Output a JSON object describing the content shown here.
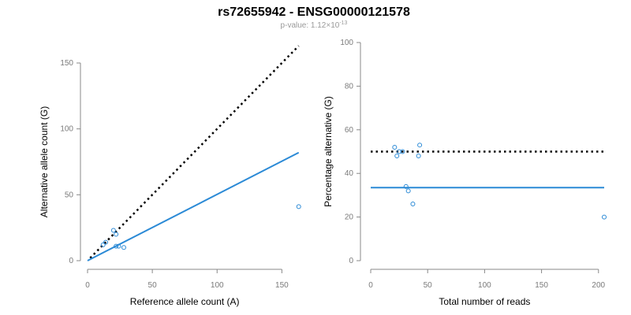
{
  "header": {
    "title": "rs72655942 - ENSG00000121578",
    "subtitle_prefix": "p-value: 1.12×10",
    "subtitle_exponent": "-13"
  },
  "colors": {
    "points": "#2b8ad6",
    "fit_line": "#2b8ad6",
    "reference_line": "#000000"
  },
  "chart_data": [
    {
      "type": "scatter",
      "title": "",
      "xlabel": "Reference allele count (A)",
      "ylabel": "Alternative allele count (G)",
      "xlim": [
        0,
        165
      ],
      "ylim": [
        0,
        150
      ],
      "xticks": [
        0,
        50,
        100,
        150
      ],
      "yticks": [
        0,
        50,
        100,
        150
      ],
      "grid": false,
      "points": [
        {
          "x": 12,
          "y": 12
        },
        {
          "x": 14,
          "y": 14
        },
        {
          "x": 20,
          "y": 23
        },
        {
          "x": 22,
          "y": 20
        },
        {
          "x": 22,
          "y": 11
        },
        {
          "x": 24,
          "y": 11
        },
        {
          "x": 28,
          "y": 10
        },
        {
          "x": 163,
          "y": 41
        }
      ],
      "reference_line": {
        "style": "dotted",
        "from": [
          2,
          2
        ],
        "to": [
          163,
          163
        ]
      },
      "fit_line": {
        "style": "solid",
        "from": [
          0,
          0
        ],
        "to": [
          163,
          82
        ]
      }
    },
    {
      "type": "scatter",
      "title": "",
      "xlabel": "Total number of reads",
      "ylabel": "Percentage alternative (G)",
      "xlim": [
        0,
        205
      ],
      "ylim": [
        0,
        100
      ],
      "xticks": [
        0,
        50,
        100,
        150,
        200
      ],
      "yticks": [
        0,
        20,
        40,
        60,
        80,
        100
      ],
      "grid": false,
      "points": [
        {
          "x": 21,
          "y": 52
        },
        {
          "x": 23,
          "y": 48
        },
        {
          "x": 25,
          "y": 50
        },
        {
          "x": 28,
          "y": 50
        },
        {
          "x": 31,
          "y": 34
        },
        {
          "x": 33,
          "y": 32
        },
        {
          "x": 37,
          "y": 26
        },
        {
          "x": 42,
          "y": 48
        },
        {
          "x": 43,
          "y": 53
        },
        {
          "x": 205,
          "y": 20
        }
      ],
      "reference_line": {
        "style": "dotted",
        "from": [
          0,
          50
        ],
        "to": [
          205,
          50
        ]
      },
      "fit_line": {
        "style": "solid",
        "from": [
          0,
          33.5
        ],
        "to": [
          205,
          33.5
        ]
      }
    }
  ]
}
